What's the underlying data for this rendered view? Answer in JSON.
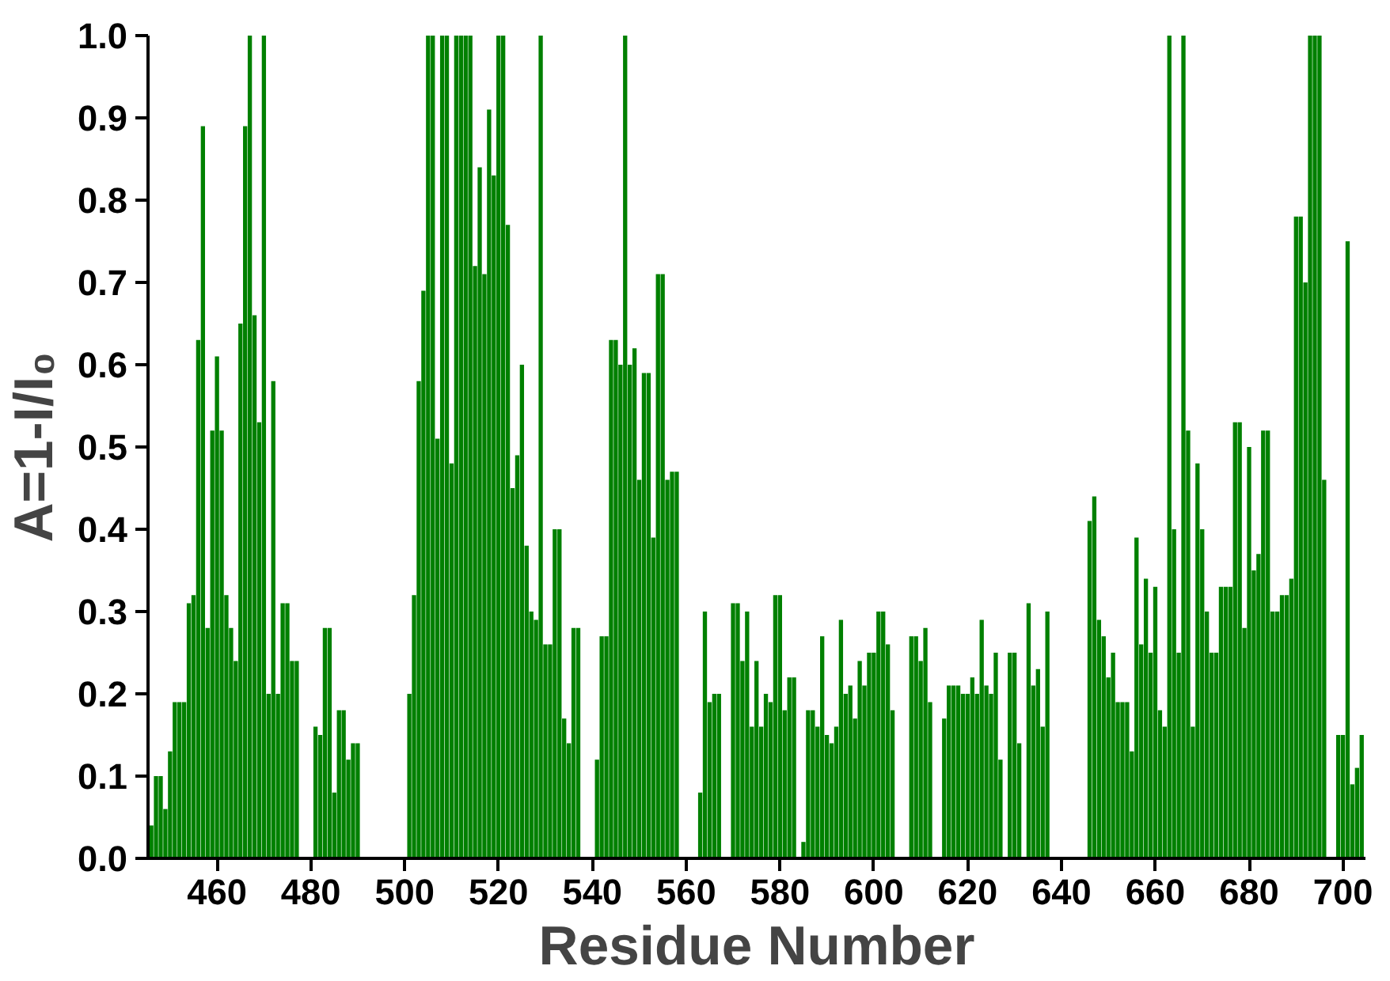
{
  "chart_data": {
    "type": "bar",
    "xlabel": "Residue Number",
    "ylabel": "A=1-I/I₀",
    "x": [
      446,
      447,
      448,
      449,
      450,
      451,
      452,
      453,
      454,
      455,
      456,
      457,
      458,
      459,
      460,
      461,
      462,
      463,
      464,
      465,
      466,
      467,
      468,
      469,
      470,
      471,
      472,
      473,
      474,
      475,
      476,
      477,
      478,
      479,
      480,
      481,
      482,
      483,
      484,
      485,
      486,
      487,
      488,
      489,
      490,
      491,
      492,
      493,
      494,
      495,
      496,
      497,
      498,
      499,
      500,
      501,
      502,
      503,
      504,
      505,
      506,
      507,
      508,
      509,
      510,
      511,
      512,
      513,
      514,
      515,
      516,
      517,
      518,
      519,
      520,
      521,
      522,
      523,
      524,
      525,
      526,
      527,
      528,
      529,
      530,
      531,
      532,
      533,
      534,
      535,
      536,
      537,
      538,
      539,
      540,
      541,
      542,
      543,
      544,
      545,
      546,
      547,
      548,
      549,
      550,
      551,
      552,
      553,
      554,
      555,
      556,
      557,
      558,
      559,
      560,
      561,
      562,
      563,
      564,
      565,
      566,
      567,
      568,
      569,
      570,
      571,
      572,
      573,
      574,
      575,
      576,
      577,
      578,
      579,
      580,
      581,
      582,
      583,
      584,
      585,
      586,
      587,
      588,
      589,
      590,
      591,
      592,
      593,
      594,
      595,
      596,
      597,
      598,
      599,
      600,
      601,
      602,
      603,
      604,
      605,
      606,
      607,
      608,
      609,
      610,
      611,
      612,
      613,
      614,
      615,
      616,
      617,
      618,
      619,
      620,
      621,
      622,
      623,
      624,
      625,
      626,
      627,
      628,
      629,
      630,
      631,
      632,
      633,
      634,
      635,
      636,
      637,
      638,
      639,
      640,
      641,
      642,
      643,
      644,
      645,
      646,
      647,
      648,
      649,
      650,
      651,
      652,
      653,
      654,
      655,
      656,
      657,
      658,
      659,
      660,
      661,
      662,
      663,
      664,
      665,
      666,
      667,
      668,
      669,
      670,
      671,
      672,
      673,
      674,
      675,
      676,
      677,
      678,
      679,
      680,
      681,
      682,
      683,
      684,
      685,
      686,
      687,
      688,
      689,
      690,
      691,
      692,
      693,
      694,
      695,
      696,
      697,
      698,
      699,
      700,
      701,
      702,
      703,
      704
    ],
    "values": [
      0.04,
      0.1,
      0.1,
      0.06,
      0.13,
      0.19,
      0.19,
      0.19,
      0.31,
      0.32,
      0.63,
      0.89,
      0.28,
      0.52,
      0.61,
      0.52,
      0.32,
      0.28,
      0.24,
      0.65,
      0.89,
      1.0,
      0.66,
      0.53,
      1.0,
      0.2,
      0.58,
      0.2,
      0.31,
      0.31,
      0.24,
      0.24,
      null,
      null,
      null,
      0.16,
      0.15,
      0.28,
      0.28,
      0.08,
      0.18,
      0.18,
      0.12,
      0.14,
      0.14,
      null,
      null,
      null,
      null,
      null,
      null,
      null,
      null,
      null,
      null,
      0.2,
      0.32,
      0.58,
      0.69,
      1.0,
      1.0,
      0.51,
      1.0,
      1.0,
      0.48,
      1.0,
      1.0,
      1.0,
      1.0,
      0.72,
      0.84,
      0.71,
      0.91,
      0.83,
      1.0,
      1.0,
      0.77,
      0.45,
      0.49,
      0.6,
      0.38,
      0.3,
      0.29,
      1.0,
      0.26,
      0.26,
      0.4,
      0.4,
      0.17,
      0.14,
      0.28,
      0.28,
      null,
      null,
      null,
      0.12,
      0.27,
      0.27,
      0.63,
      0.63,
      0.6,
      1.0,
      0.6,
      0.62,
      0.46,
      0.59,
      0.59,
      0.39,
      0.71,
      0.71,
      0.46,
      0.47,
      0.47,
      null,
      null,
      null,
      null,
      0.08,
      0.3,
      0.19,
      0.2,
      0.2,
      null,
      null,
      0.31,
      0.31,
      0.24,
      0.3,
      0.16,
      0.24,
      0.16,
      0.2,
      0.19,
      0.32,
      0.32,
      0.18,
      0.22,
      0.22,
      null,
      0.02,
      0.18,
      0.18,
      0.16,
      0.27,
      0.15,
      0.14,
      0.16,
      0.29,
      0.2,
      0.21,
      0.17,
      0.24,
      0.21,
      0.25,
      0.25,
      0.3,
      0.3,
      0.26,
      0.18,
      null,
      null,
      null,
      0.27,
      0.27,
      0.24,
      0.28,
      0.19,
      null,
      null,
      0.17,
      0.21,
      0.21,
      0.21,
      0.2,
      0.2,
      0.22,
      0.2,
      0.29,
      0.21,
      0.2,
      0.25,
      0.12,
      null,
      0.25,
      0.25,
      0.14,
      null,
      0.31,
      0.21,
      0.23,
      0.16,
      0.3,
      null,
      null,
      null,
      null,
      null,
      null,
      null,
      null,
      0.41,
      0.44,
      0.29,
      0.27,
      0.22,
      0.25,
      0.19,
      0.19,
      0.19,
      0.13,
      0.39,
      0.26,
      0.34,
      0.25,
      0.33,
      0.18,
      0.16,
      1.0,
      0.4,
      0.25,
      1.0,
      0.52,
      0.16,
      0.48,
      0.4,
      0.3,
      0.25,
      0.25,
      0.33,
      0.33,
      0.33,
      0.53,
      0.53,
      0.28,
      0.5,
      0.35,
      0.37,
      0.52,
      0.52,
      0.3,
      0.3,
      0.32,
      0.32,
      0.34,
      0.78,
      0.78,
      0.7,
      1.0,
      1.0,
      1.0,
      0.46,
      null,
      null,
      0.15,
      0.15,
      0.75,
      0.09,
      0.11,
      0.15
    ],
    "color": "#008000",
    "xlim": [
      445.3,
      704.8
    ],
    "ylim": [
      0,
      1
    ],
    "xticks": [
      460,
      480,
      500,
      520,
      540,
      560,
      580,
      600,
      620,
      640,
      660,
      680,
      700
    ],
    "yticks": [
      {
        "value": 0,
        "label": "0.0"
      },
      {
        "value": 0.1,
        "label": "0.1"
      },
      {
        "value": 0.2,
        "label": "0.2"
      },
      {
        "value": 0.3,
        "label": "0.3"
      },
      {
        "value": 0.4,
        "label": "0.4"
      },
      {
        "value": 0.5,
        "label": "0.5"
      },
      {
        "value": 0.6,
        "label": "0.6"
      },
      {
        "value": 0.7,
        "label": "0.7"
      },
      {
        "value": 0.8,
        "label": "0.8"
      },
      {
        "value": 0.9,
        "label": "0.9"
      },
      {
        "value": 1.0,
        "label": "1.0"
      }
    ],
    "grid": false
  }
}
